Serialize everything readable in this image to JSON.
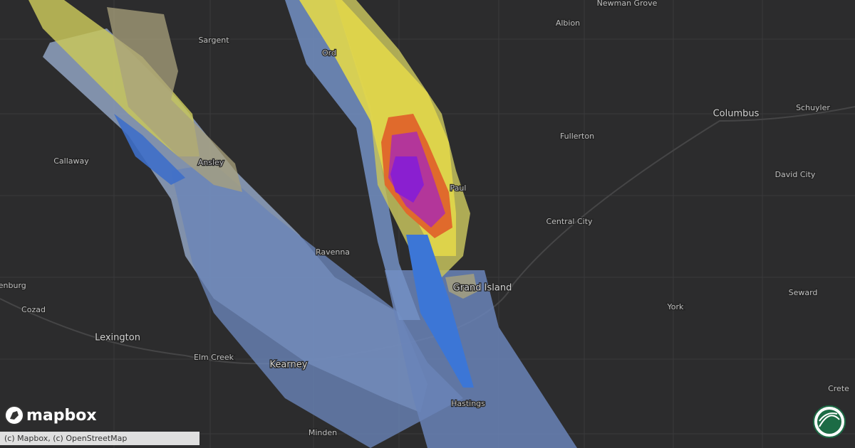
{
  "map": {
    "labels": [
      "Newman Grove",
      "Albion",
      "Sargent",
      "Ord",
      "Columbus",
      "Schuyler",
      "Fullerton",
      "Callaway",
      "Ansley",
      "Paul",
      "David City",
      "Central City",
      "Ravenna",
      "Grand Island",
      "Seward",
      "Gothenburg",
      "Cozad",
      "Lexington",
      "York",
      "Elm Creek",
      "Kearney",
      "Crete",
      "Hastings",
      "Minden"
    ],
    "logo": "mapbox",
    "attribution": "(c) Mapbox, (c) OpenStreetMap"
  }
}
